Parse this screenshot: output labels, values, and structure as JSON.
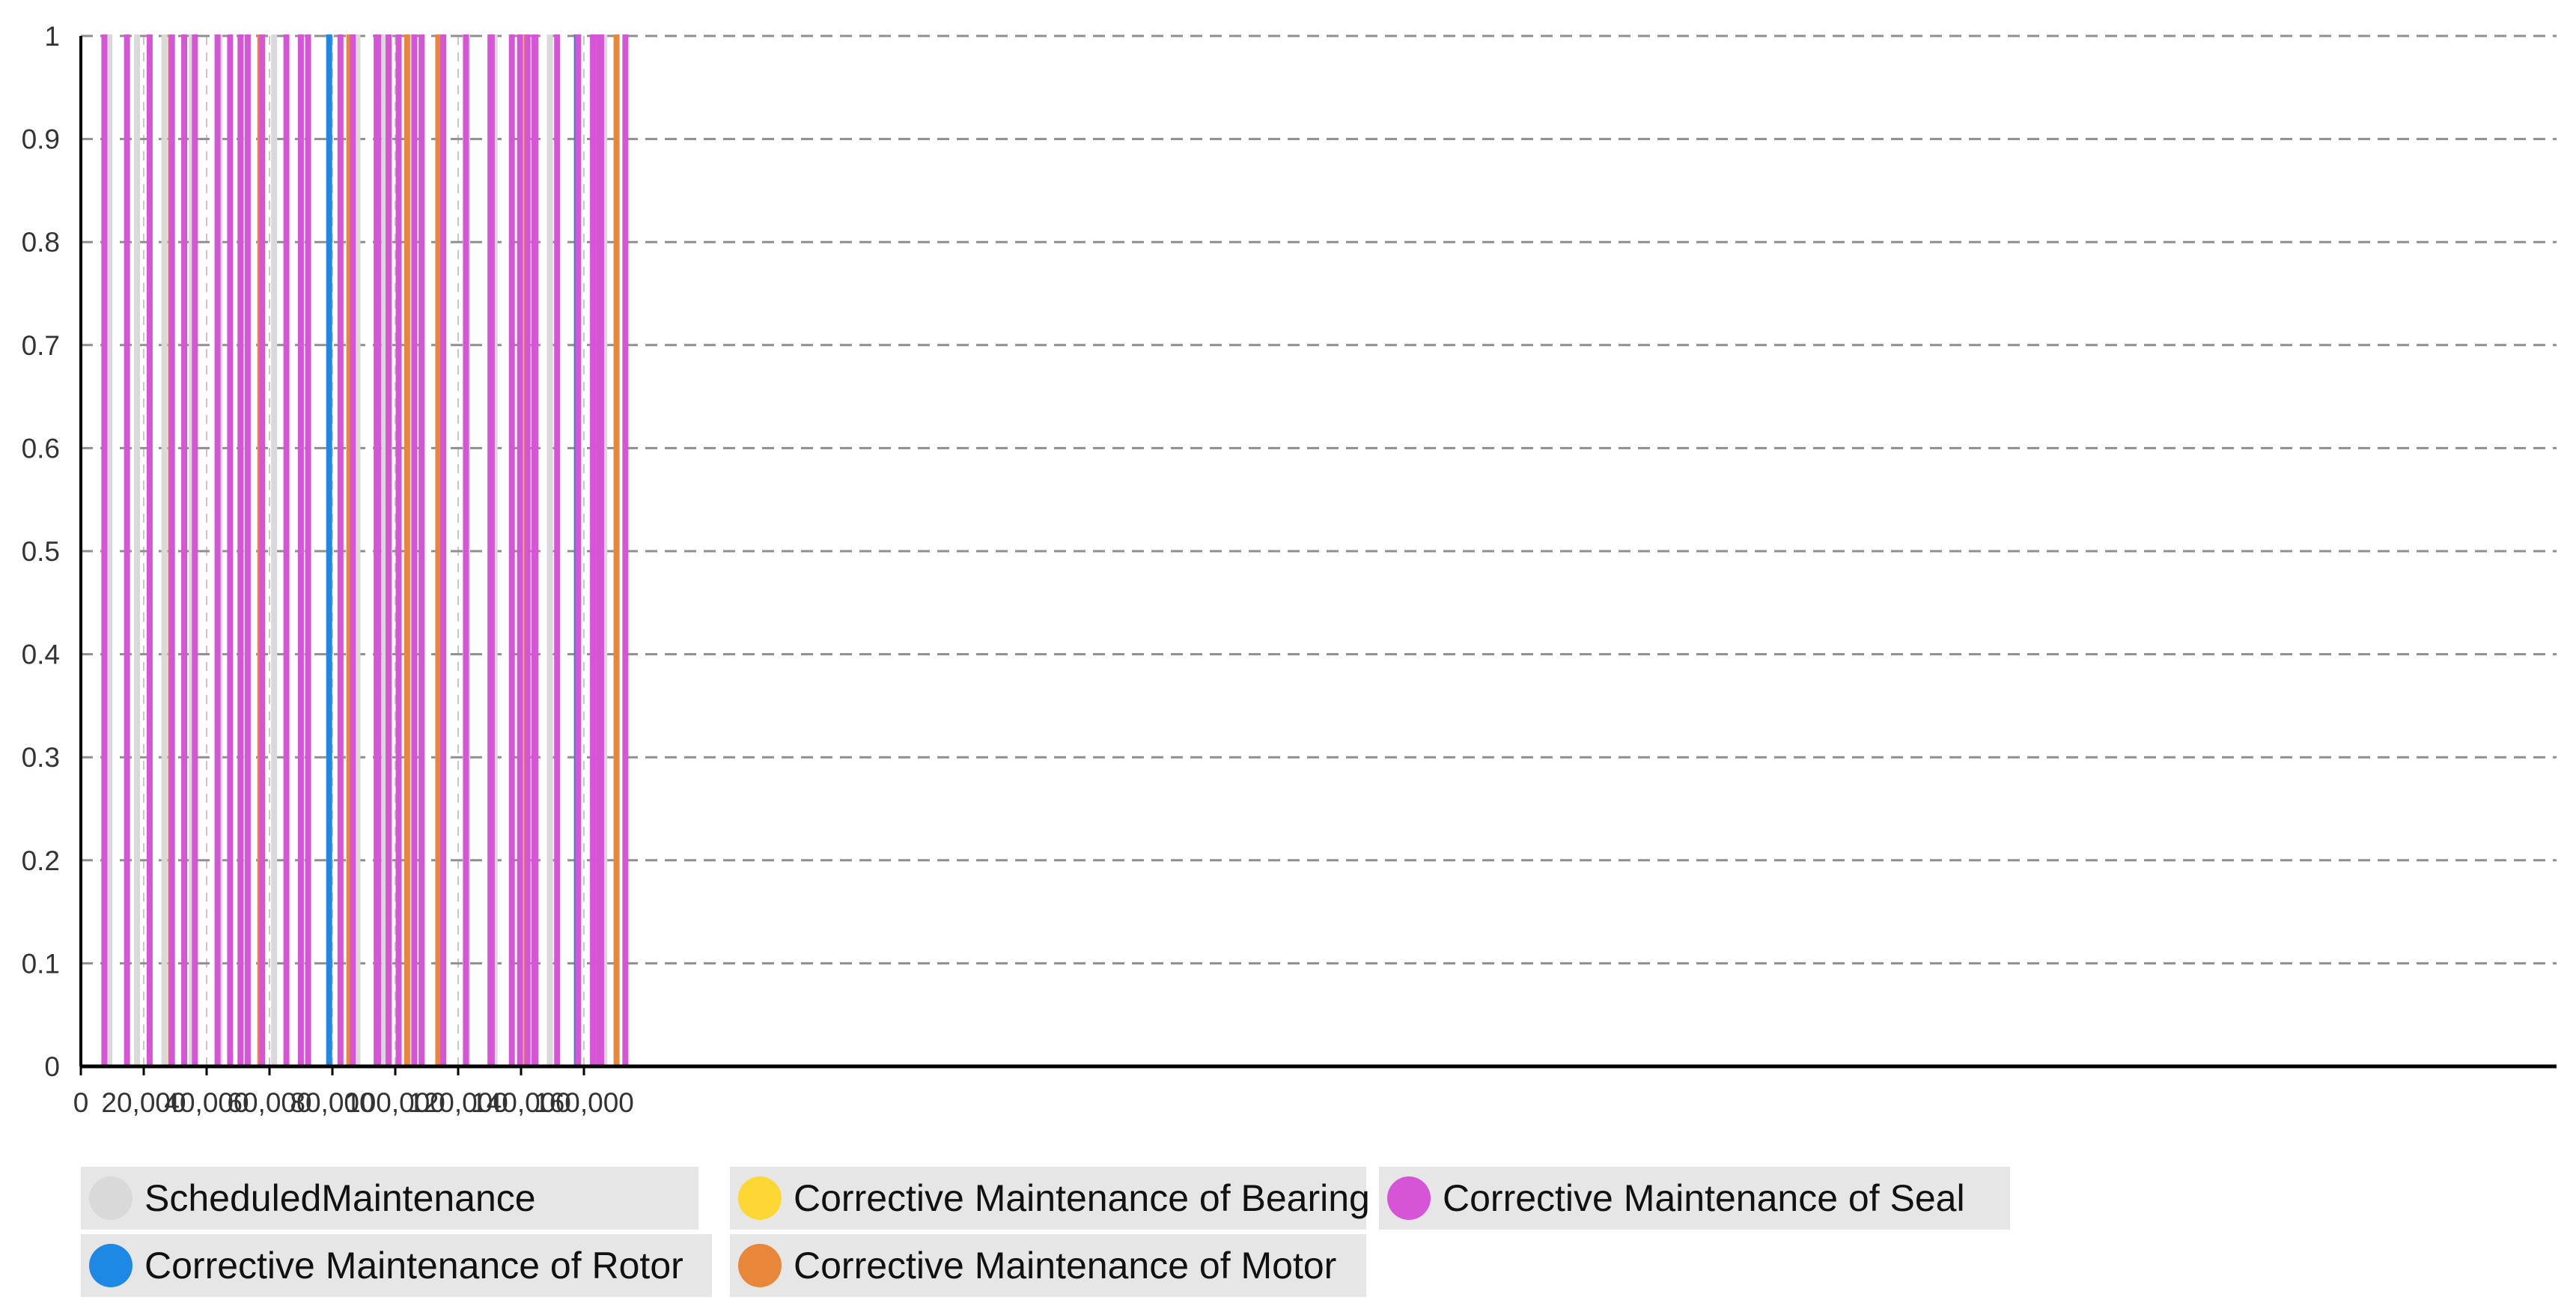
{
  "chart_data": {
    "type": "line",
    "title": "",
    "xlabel": "",
    "ylabel": "",
    "xlim": [
      0,
      175000
    ],
    "ylim": [
      0,
      1
    ],
    "x_ticks": [
      0,
      20000,
      40000,
      60000,
      80000,
      100000,
      120000,
      140000,
      160000
    ],
    "x_tick_labels": [
      "0",
      "20,000",
      "40,000",
      "60,000",
      "80,000",
      "100,000",
      "120,000",
      "140,000",
      "160,000"
    ],
    "y_ticks": [
      0,
      0.1,
      0.2,
      0.3,
      0.4,
      0.5,
      0.6,
      0.7,
      0.8,
      0.9,
      1
    ],
    "y_tick_labels": [
      "0",
      "0.1",
      "0.2",
      "0.3",
      "0.4",
      "0.5",
      "0.6",
      "0.7",
      "0.8",
      "0.9",
      "1"
    ],
    "grid": "dashed, horizontal and vertical",
    "legend_placement": "bottom",
    "series": [
      {
        "name": "ScheduledMaintenance",
        "color": "#d9d9d9",
        "intervals": [
          [
            8600,
            8750
          ],
          [
            17400,
            17550
          ],
          [
            26100,
            26250
          ],
          [
            34800,
            35000
          ],
          [
            43600,
            43850
          ],
          [
            52300,
            52500
          ],
          [
            61000,
            61300
          ],
          [
            69700,
            70050
          ],
          [
            78500,
            78650
          ],
          [
            87500,
            87750
          ],
          [
            96100,
            96450
          ],
          [
            104800,
            105000
          ],
          [
            113500,
            114000
          ],
          [
            122400,
            122750
          ],
          [
            131100,
            131550
          ],
          [
            139800,
            140900
          ],
          [
            148700,
            149100
          ],
          [
            157400,
            157700
          ],
          [
            166000,
            166900
          ]
        ]
      },
      {
        "name": "Corrective Maintenance of Rotor",
        "color": "#1e88e5",
        "intervals": [
          [
            78500,
            78800
          ],
          [
            157300,
            157800
          ]
        ]
      },
      {
        "name": "Corrective Maintenance of Bearing",
        "color": "#fdd835",
        "intervals": []
      },
      {
        "name": "Corrective Maintenance of Motor",
        "color": "#e8873a",
        "intervals": [
          [
            28200,
            28350
          ],
          [
            56600,
            56750
          ],
          [
            84900,
            85050
          ],
          [
            103300,
            103400
          ],
          [
            113200,
            113350
          ],
          [
            141300,
            141500
          ],
          [
            169900,
            170050
          ]
        ]
      },
      {
        "name": "Corrective Maintenance of Seal",
        "color": "#d655d6",
        "intervals": [
          [
            7000,
            7150
          ],
          [
            14200,
            14350
          ],
          [
            21400,
            21550
          ],
          [
            28500,
            28650
          ],
          [
            32400,
            32550
          ],
          [
            35800,
            35950
          ],
          [
            43000,
            43150
          ],
          [
            47000,
            47150
          ],
          [
            50300,
            50450
          ],
          [
            52600,
            52750
          ],
          [
            57200,
            57350
          ],
          [
            64900,
            65050
          ],
          [
            69500,
            69650
          ],
          [
            71800,
            71950
          ],
          [
            82100,
            82250
          ],
          [
            86000,
            86150
          ],
          [
            93600,
            93750
          ],
          [
            94100,
            94250
          ],
          [
            97400,
            97550
          ],
          [
            100600,
            100750
          ],
          [
            105600,
            105750
          ],
          [
            107900,
            108050
          ],
          [
            114800,
            114950
          ],
          [
            122000,
            122150
          ],
          [
            129800,
            129950
          ],
          [
            130200,
            130350
          ],
          [
            136600,
            136750
          ],
          [
            139200,
            139350
          ],
          [
            141600,
            141750
          ],
          [
            143800,
            143950
          ],
          [
            144100,
            144250
          ],
          [
            151000,
            151150
          ],
          [
            157700,
            157850
          ],
          [
            162400,
            162550
          ],
          [
            164300,
            164450
          ],
          [
            165000,
            165150
          ],
          [
            172700,
            172850
          ]
        ]
      }
    ],
    "legend": [
      {
        "label": "ScheduledMaintenance",
        "color": "#d9d9d9"
      },
      {
        "label": "Corrective Maintenance of Bearing",
        "color": "#fdd835"
      },
      {
        "label": "Corrective Maintenance of Seal",
        "color": "#d655d6"
      },
      {
        "label": "Corrective Maintenance of Rotor",
        "color": "#1e88e5"
      },
      {
        "label": "Corrective Maintenance of Motor",
        "color": "#e8873a"
      }
    ]
  }
}
